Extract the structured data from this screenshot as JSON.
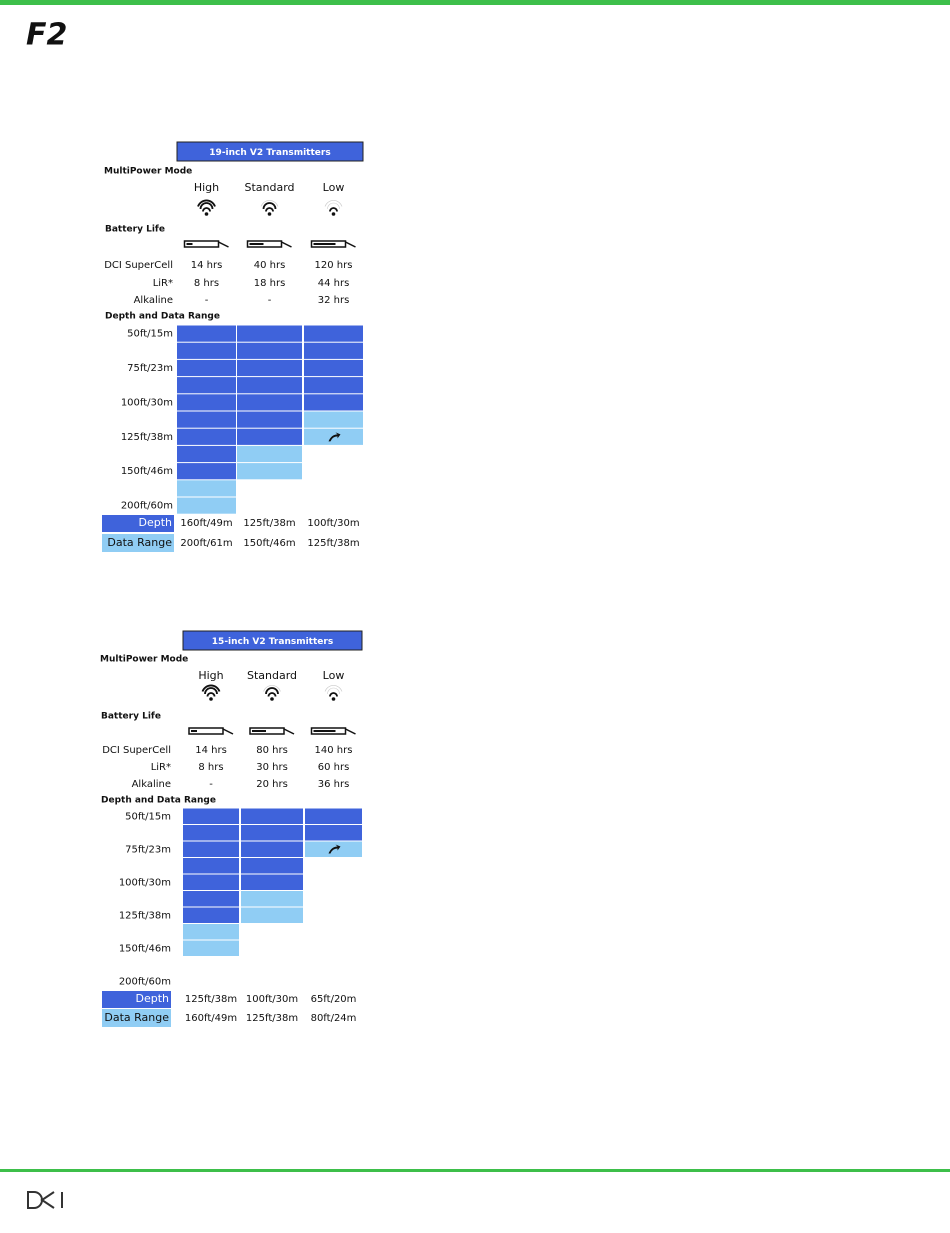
{
  "header": {
    "logo": "F2"
  },
  "tables": [
    {
      "title": "19-inch V2 Transmitters",
      "mode_label": "MultiPower Mode",
      "modes": [
        "High",
        "Standard",
        "Low"
      ],
      "battery_label": "Battery Life",
      "battery_rows": [
        {
          "name": "DCI SuperCell",
          "values": [
            "14 hrs",
            "40 hrs",
            "120 hrs"
          ]
        },
        {
          "name": "LiR*",
          "values": [
            "8 hrs",
            "18 hrs",
            "44 hrs"
          ]
        },
        {
          "name": "Alkaline",
          "values": [
            "-",
            "-",
            "32 hrs"
          ]
        }
      ],
      "range_label": "Depth and Data Range",
      "depth_labels": [
        "50ft/15m",
        "75ft/23m",
        "100ft/30m",
        "125ft/38m",
        "150ft/46m",
        "200ft/60m"
      ],
      "depth_name": "Depth",
      "depth": [
        "160ft/49m",
        "125ft/38m",
        "100ft/30m"
      ],
      "data_range_name": "Data Range",
      "data_range": [
        "200ft/61m",
        "150ft/46m",
        "125ft/38m"
      ]
    },
    {
      "title": "15-inch V2 Transmitters",
      "mode_label": "MultiPower Mode",
      "modes": [
        "High",
        "Standard",
        "Low"
      ],
      "battery_label": "Battery Life",
      "battery_rows": [
        {
          "name": "DCI SuperCell",
          "values": [
            "14 hrs",
            "80 hrs",
            "140 hrs"
          ]
        },
        {
          "name": "LiR*",
          "values": [
            "8 hrs",
            "30 hrs",
            "60 hrs"
          ]
        },
        {
          "name": "Alkaline",
          "values": [
            "-",
            "20 hrs",
            "36 hrs"
          ]
        }
      ],
      "range_label": "Depth and Data Range",
      "depth_labels": [
        "50ft/15m",
        "75ft/23m",
        "100ft/30m",
        "125ft/38m",
        "150ft/46m",
        "200ft/60m"
      ],
      "depth_name": "Depth",
      "depth": [
        "125ft/38m",
        "100ft/30m",
        "65ft/20m"
      ],
      "data_range_name": "Data Range",
      "data_range": [
        "160ft/49m",
        "125ft/38m",
        "80ft/24m"
      ]
    }
  ]
}
